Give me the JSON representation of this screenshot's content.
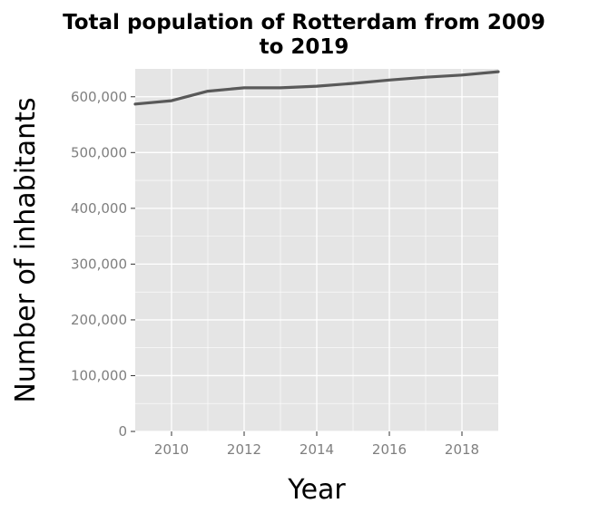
{
  "chart_data": {
    "type": "line",
    "title": "Total population of Rotterdam from 2009 to 2019",
    "title_lines": [
      "Total population of Rotterdam from 2009",
      "to 2019"
    ],
    "xlabel": "Year",
    "ylabel": "Number of inhabitants",
    "xlim": [
      2009,
      2019
    ],
    "ylim": [
      0,
      650000
    ],
    "x_ticks": [
      2010,
      2012,
      2014,
      2016,
      2018
    ],
    "x_tick_labels": [
      "2010",
      "2012",
      "2014",
      "2016",
      "2018"
    ],
    "y_ticks": [
      0,
      100000,
      200000,
      300000,
      400000,
      500000,
      600000
    ],
    "y_tick_labels": [
      "0",
      "100,000",
      "200,000",
      "300,000",
      "400,000",
      "500,000",
      "600,000"
    ],
    "grid": true,
    "series": [
      {
        "x": [
          2009,
          2010,
          2011,
          2012,
          2013,
          2014,
          2015,
          2016,
          2017,
          2018,
          2019
        ],
        "values": [
          587000,
          593000,
          610000,
          616000,
          616000,
          619000,
          624000,
          630000,
          635000,
          639000,
          645000
        ],
        "color": "#595959"
      }
    ],
    "panel_background": "#e5e5e5",
    "grid_color": "#ffffff"
  }
}
